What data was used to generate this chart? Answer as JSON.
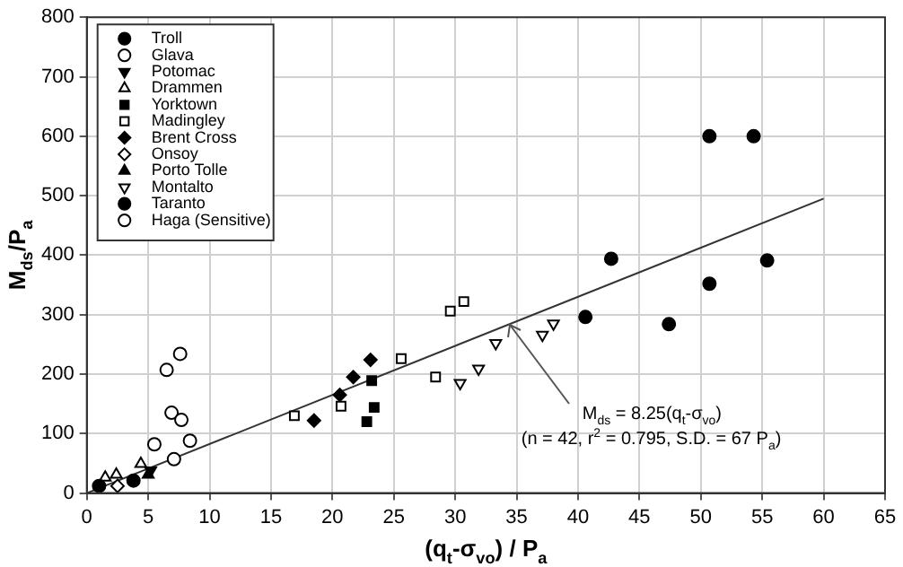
{
  "chart_data": {
    "type": "scatter",
    "xlabel": "(q$_{t}$-σ$_{vo}$) / P$_{a}$",
    "ylabel": "M$_{ds}$/P$_{a}$",
    "xlim": [
      0,
      65
    ],
    "xticks": [
      0,
      5,
      10,
      15,
      20,
      25,
      30,
      35,
      40,
      45,
      50,
      55,
      60,
      65
    ],
    "ylim": [
      0,
      800
    ],
    "yticks": [
      0,
      100,
      200,
      300,
      400,
      500,
      600,
      700,
      800
    ],
    "grid": true,
    "legend": "top left",
    "series": [
      {
        "name": "Troll",
        "color": "#000000",
        "marker": "circle",
        "x": [
          1.0,
          3.8,
          40.6,
          47.4,
          50.7
        ],
        "values": [
          12,
          21,
          296,
          284,
          352
        ]
      },
      {
        "name": "Glava",
        "color": "#000000",
        "marker": "circle-open",
        "x": [
          6.5,
          7.6,
          6.9,
          7.7,
          8.4
        ],
        "values": [
          207,
          234,
          135,
          123,
          88
        ]
      },
      {
        "name": "Potomac",
        "color": "#000000",
        "marker": "triangle-down",
        "x": [
          5.2
        ],
        "values": [
          38
        ]
      },
      {
        "name": "Drammen",
        "color": "#000000",
        "marker": "triangle-open",
        "x": [
          4.4,
          2.4,
          1.5
        ],
        "values": [
          49,
          31,
          26
        ]
      },
      {
        "name": "Yorktown",
        "color": "#000000",
        "marker": "square",
        "x": [
          23.2,
          23.4,
          22.8
        ],
        "values": [
          189,
          144,
          120
        ]
      },
      {
        "name": "Madingley",
        "color": "#000000",
        "marker": "square-open",
        "x": [
          16.9,
          20.7,
          25.6,
          28.4,
          29.6,
          30.7
        ],
        "values": [
          130,
          146,
          226,
          195,
          306,
          322
        ]
      },
      {
        "name": "Brent Cross",
        "color": "#000000",
        "marker": "diamond",
        "x": [
          18.5,
          20.6,
          21.7,
          23.1
        ],
        "values": [
          122,
          165,
          195,
          224
        ]
      },
      {
        "name": "Onsoy",
        "color": "#000000",
        "marker": "diamond-open",
        "x": [
          2.5
        ],
        "values": [
          12
        ]
      },
      {
        "name": "Porto Tolle",
        "color": "#000000",
        "marker": "triangle",
        "x": [
          5.0
        ],
        "values": [
          31
        ]
      },
      {
        "name": "Montalto",
        "color": "#000000",
        "marker": "triangle-down-open",
        "x": [
          30.4,
          31.9,
          33.3,
          37.1,
          38.0
        ],
        "values": [
          185,
          209,
          252,
          266,
          285
        ]
      },
      {
        "name": "Taranto",
        "color": "#000000",
        "marker": "circle",
        "x": [
          42.7,
          50.7,
          54.3,
          55.4
        ],
        "values": [
          394,
          600,
          600,
          391
        ]
      },
      {
        "name": "Haga (Sensitive)",
        "color": "#000000",
        "marker": "circle-open",
        "x": [
          7.1,
          5.5
        ],
        "values": [
          57,
          82
        ]
      },
      {
        "type": "line",
        "color": "#333333",
        "marker": "none",
        "line_style": "solid",
        "x": [
          0,
          60
        ],
        "values": [
          0,
          495
        ]
      }
    ],
    "annotations": [
      {
        "text": "M$_{ds}$ = 8.25(q$_{t}$-σ$_{vo}$)",
        "x": 34.5,
        "y": 282
      },
      "(n = 42, r$^{2}$ = 0.795, S.D. = 67 P$_{a}$)"
    ]
  }
}
